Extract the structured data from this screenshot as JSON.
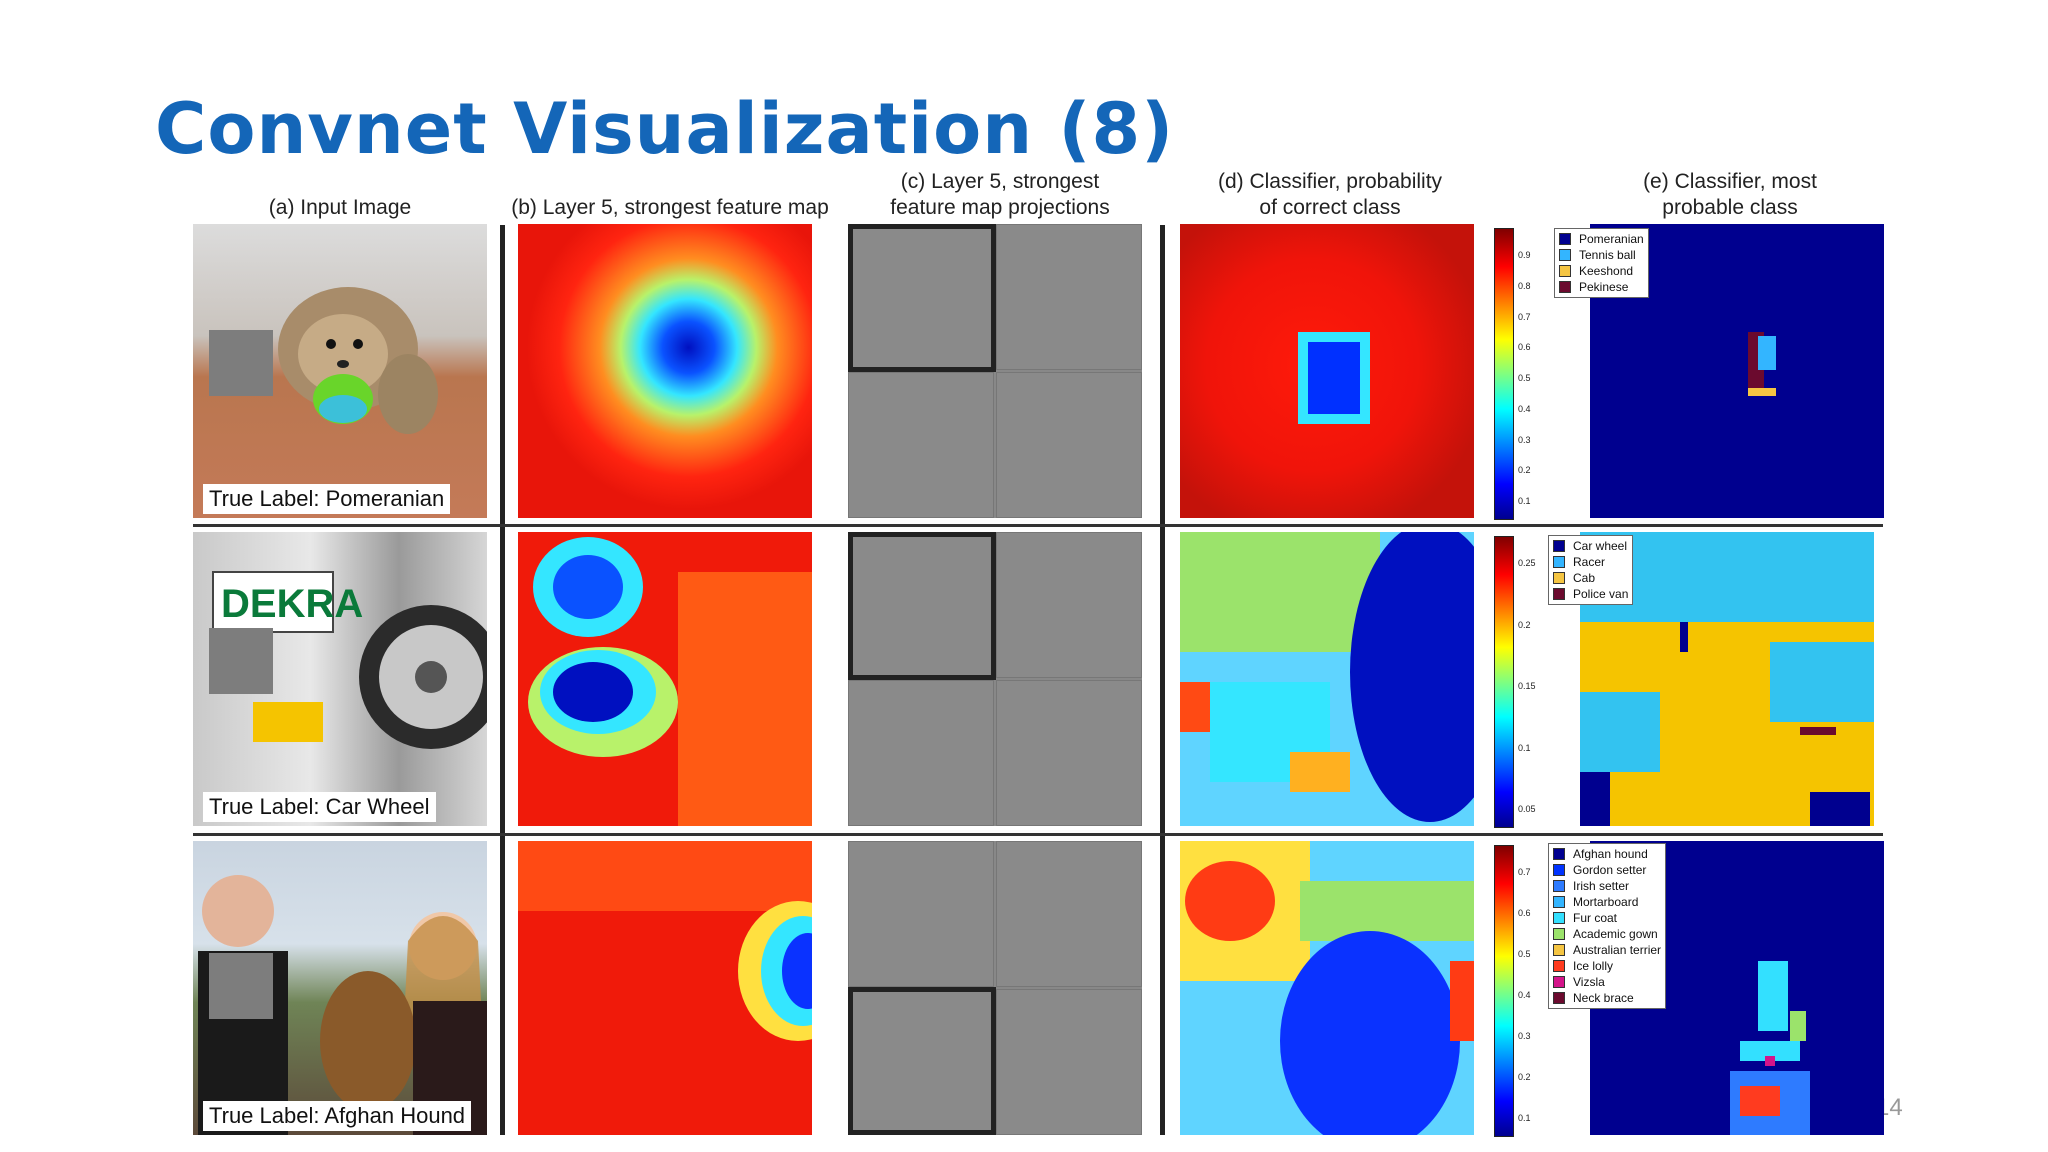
{
  "slide": {
    "title": "Convnet Visualization (8)",
    "page_number": "14"
  },
  "columns": {
    "a": "(a) Input Image",
    "b": "(b) Layer 5, strongest feature map",
    "c_line1": "(c) Layer 5, strongest",
    "c_line2": "feature map projections",
    "d_line1": "(d) Classifier, probability",
    "d_line2": "of correct class",
    "e_line1": "(e) Classifier, most",
    "e_line2": "probable class"
  },
  "rows": [
    {
      "true_label": "True Label: Pomeranian",
      "colorbar_ticks": [
        "0.9",
        "0.8",
        "0.7",
        "0.6",
        "0.5",
        "0.4",
        "0.3",
        "0.2",
        "0.1"
      ],
      "legend": [
        {
          "label": "Pomeranian",
          "color": "#00008f"
        },
        {
          "label": "Tennis ball",
          "color": "#33b5ff"
        },
        {
          "label": "Keeshond",
          "color": "#f5c542"
        },
        {
          "label": "Pekinese",
          "color": "#6b0a2e"
        }
      ]
    },
    {
      "true_label": "True Label: Car Wheel",
      "colorbar_ticks": [
        "0.25",
        "0.2",
        "0.15",
        "0.1",
        "0.05"
      ],
      "legend": [
        {
          "label": "Car wheel",
          "color": "#00008f"
        },
        {
          "label": "Racer",
          "color": "#33b5ff"
        },
        {
          "label": "Cab",
          "color": "#f5c542"
        },
        {
          "label": "Police van",
          "color": "#6b0a2e"
        }
      ]
    },
    {
      "true_label": "True Label: Afghan Hound",
      "colorbar_ticks": [
        "0.7",
        "0.6",
        "0.5",
        "0.4",
        "0.3",
        "0.2",
        "0.1"
      ],
      "legend": [
        {
          "label": "Afghan hound",
          "color": "#00008f"
        },
        {
          "label": "Gordon setter",
          "color": "#0033ff"
        },
        {
          "label": "Irish setter",
          "color": "#2e7bff"
        },
        {
          "label": "Mortarboard",
          "color": "#33b5ff"
        },
        {
          "label": "Fur coat",
          "color": "#33e0ff"
        },
        {
          "label": "Academic gown",
          "color": "#9be36b"
        },
        {
          "label": "Australian terrier",
          "color": "#f5c542"
        },
        {
          "label": "Ice lolly",
          "color": "#ff3b1f"
        },
        {
          "label": "Vizsla",
          "color": "#d4148a"
        },
        {
          "label": "Neck brace",
          "color": "#6b0a2e"
        }
      ]
    }
  ]
}
